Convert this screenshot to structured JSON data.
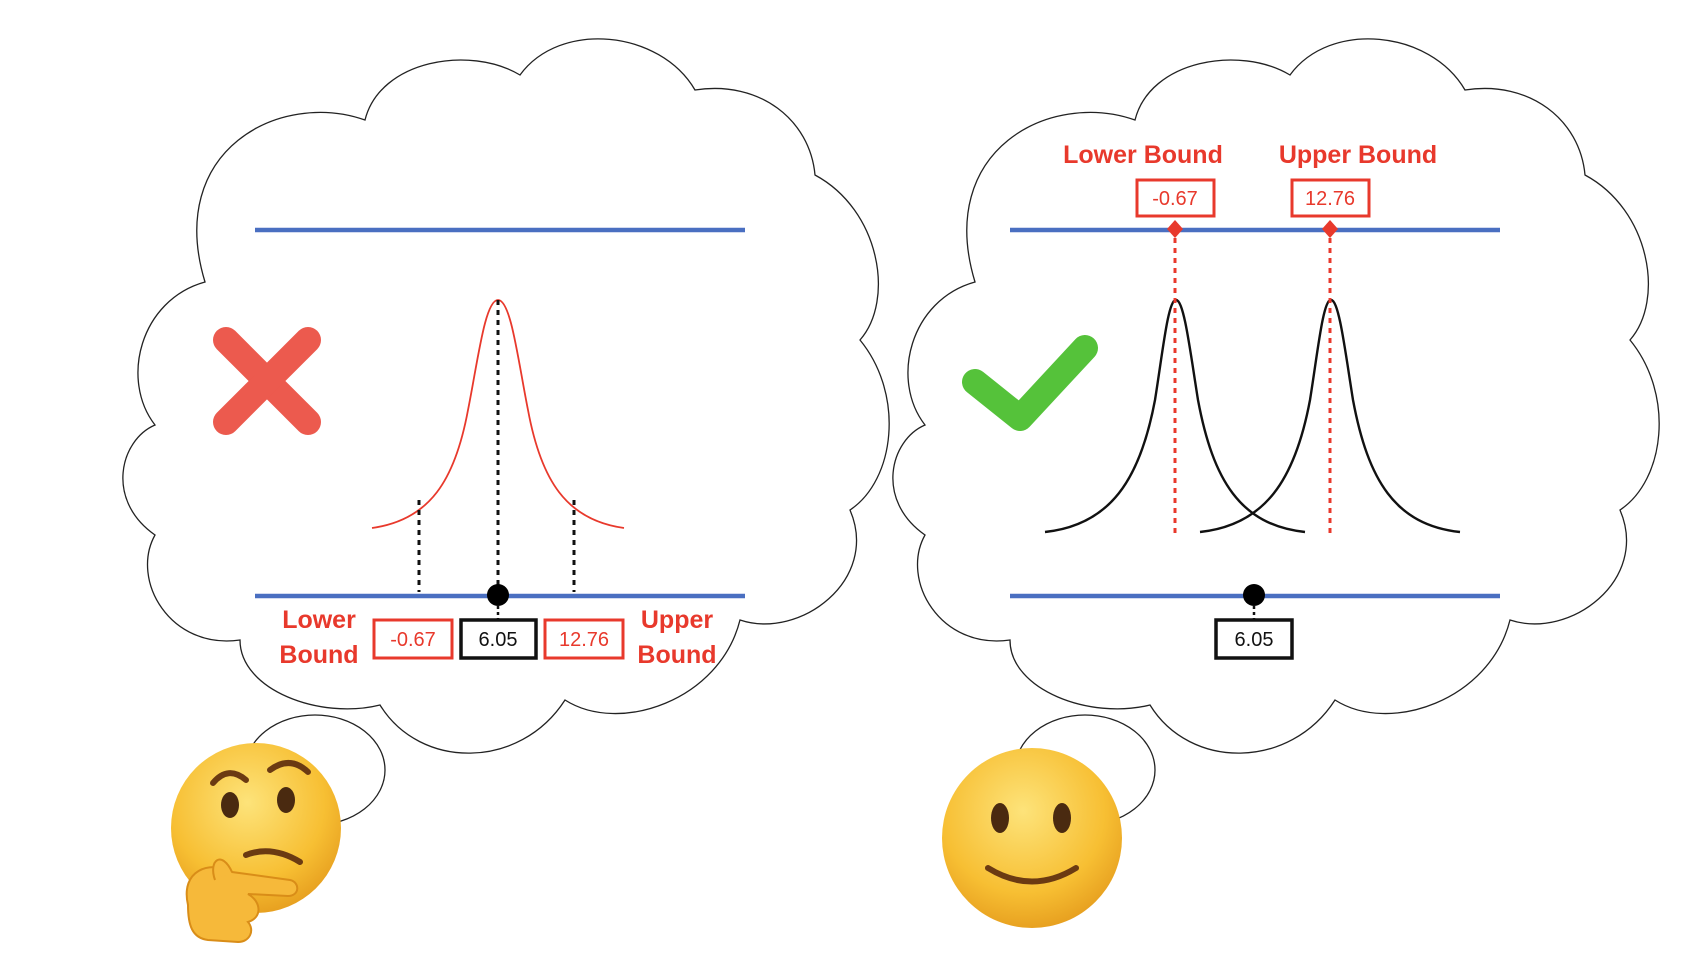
{
  "left_panel": {
    "verdict_icon": "cross-icon",
    "emoji_icon": "thinking-face-emoji",
    "estimate": "6.05",
    "lower_value": "-0.67",
    "upper_value": "12.76",
    "lower_label_line1": "Lower",
    "lower_label_line2": "Bound",
    "upper_label_line1": "Upper",
    "upper_label_line2": "Bound"
  },
  "right_panel": {
    "verdict_icon": "check-icon",
    "emoji_icon": "slightly-smiling-face-emoji",
    "estimate": "6.05",
    "lower_value": "-0.67",
    "upper_value": "12.76",
    "lower_label": "Lower Bound",
    "upper_label": "Upper Bound"
  },
  "colors": {
    "axis_line": "#4a6fc1",
    "bound_red": "#e8392c",
    "cross_red": "#ec5a4e",
    "check_green": "#55c23a",
    "curve_black": "#111111",
    "estimate_box": "#111111"
  }
}
